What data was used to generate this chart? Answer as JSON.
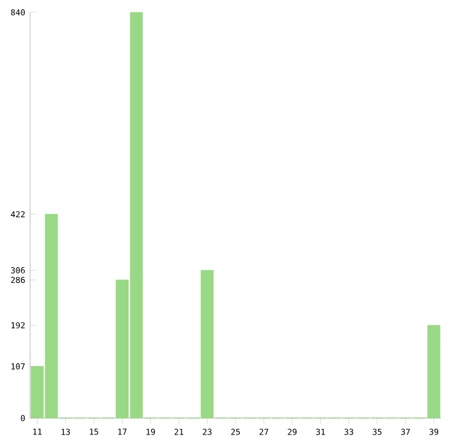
{
  "chart_data": {
    "type": "bar",
    "categories": [
      "11",
      null,
      "13",
      null,
      "15",
      null,
      "17",
      null,
      "19",
      null,
      "21",
      null,
      "23",
      null,
      "25",
      null,
      "27",
      null,
      "29",
      null,
      "31",
      null,
      "33",
      null,
      "35",
      null,
      "37",
      null,
      "39"
    ],
    "values": [
      107,
      422,
      0,
      0,
      0,
      0,
      286,
      840,
      0,
      0,
      0,
      0,
      306,
      0,
      0,
      0,
      0,
      0,
      0,
      0,
      0,
      0,
      0,
      0,
      0,
      0,
      0,
      0,
      192
    ],
    "color": "#99d985",
    "ylim": [
      0,
      840
    ],
    "yticks": [
      0,
      107,
      192,
      286,
      306,
      422,
      840
    ],
    "grid": false
  }
}
